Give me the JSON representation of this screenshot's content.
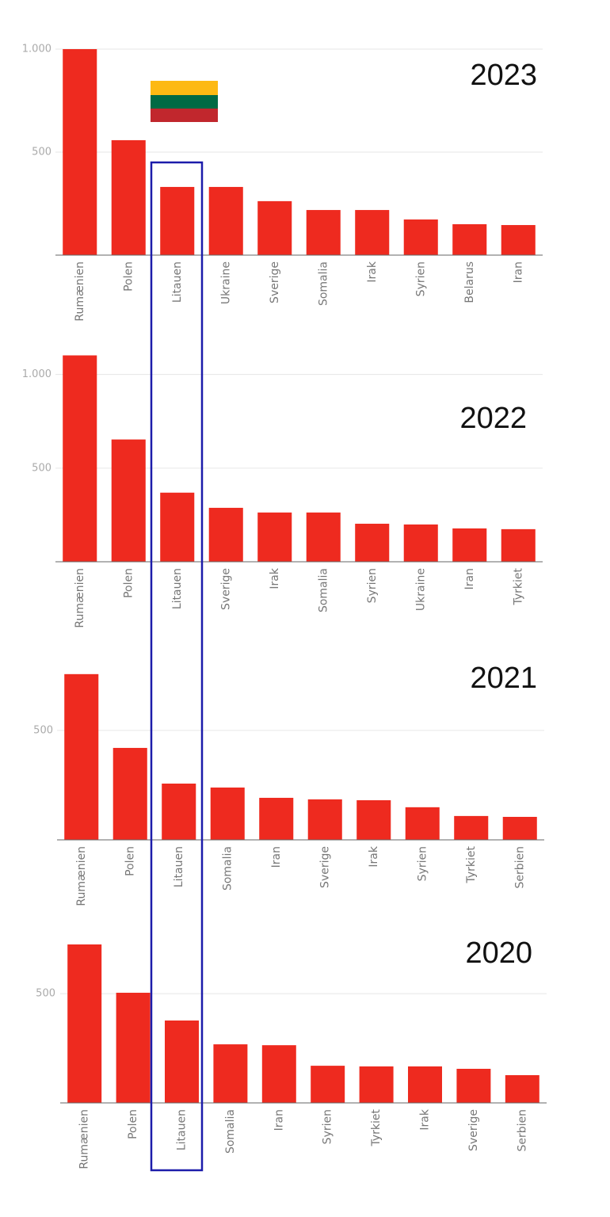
{
  "chart_data": [
    {
      "type": "bar",
      "title": "2023",
      "categories": [
        "Rumænien",
        "Polen",
        "Litauen",
        "Ukraine",
        "Sverige",
        "Somalia",
        "Irak",
        "Syrien",
        "Belarus",
        "Iran"
      ],
      "values": [
        1000,
        558,
        331,
        331,
        262,
        219,
        219,
        173,
        150,
        146
      ],
      "color": "#ee2a1f",
      "ylim": [
        0,
        1000
      ],
      "yticks": [
        500,
        {
          "value": 1000,
          "label": "1.000"
        }
      ],
      "grid": true
    },
    {
      "type": "bar",
      "title": "2022",
      "categories": [
        "Rumænien",
        "Polen",
        "Litauen",
        "Sverige",
        "Irak",
        "Somalia",
        "Syrien",
        "Ukraine",
        "Iran",
        "Tyrkiet"
      ],
      "values": [
        1102,
        653,
        369,
        288,
        263,
        263,
        203,
        199,
        178,
        174
      ],
      "color": "#ee2a1f",
      "ylim": [
        0,
        1100
      ],
      "yticks": [
        500,
        {
          "value": 1000,
          "label": "1.000"
        }
      ],
      "grid": true
    },
    {
      "type": "bar",
      "title": "2021",
      "categories": [
        "Rumænien",
        "Polen",
        "Litauen",
        "Somalia",
        "Iran",
        "Sverige",
        "Irak",
        "Syrien",
        "Tyrkiet",
        "Serbien"
      ],
      "values": [
        757,
        420,
        257,
        239,
        192,
        185,
        181,
        149,
        109,
        105
      ],
      "color": "#ee2a1f",
      "ylim": [
        0,
        760
      ],
      "yticks": [
        500
      ],
      "grid": true
    },
    {
      "type": "bar",
      "title": "2020",
      "categories": [
        "Rumænien",
        "Polen",
        "Litauen",
        "Somalia",
        "Iran",
        "Syrien",
        "Tyrkiet",
        "Irak",
        "Sverige",
        "Serbien"
      ],
      "values": [
        725,
        504,
        377,
        268,
        264,
        170,
        167,
        167,
        156,
        127
      ],
      "color": "#ee2a1f",
      "ylim": [
        0,
        725
      ],
      "yticks": [
        500
      ],
      "grid": true
    }
  ]
}
